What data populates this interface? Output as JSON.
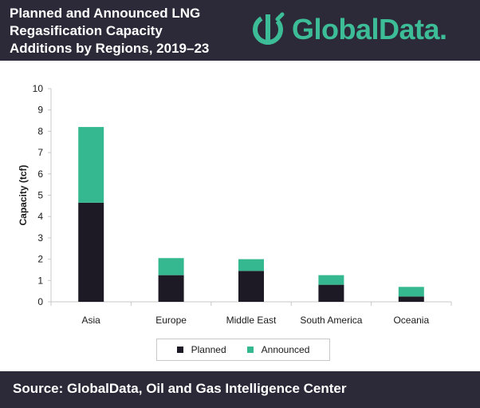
{
  "header": {
    "title_lines": [
      "Planned and Announced LNG",
      "Regasification Capacity",
      "Additions by Regions, 2019–23"
    ],
    "logo_text": "GlobalData."
  },
  "footer": {
    "source": "Source: GlobalData, Oil and Gas Intelligence Center"
  },
  "colors": {
    "planned": "#1d1a26",
    "announced": "#35b88f",
    "header_bg": "#2c2a38",
    "brand": "#3dbd97"
  },
  "chart_data": {
    "type": "bar",
    "stacked": true,
    "title": "Planned and Announced LNG Regasification Capacity Additions by Regions, 2019–23",
    "xlabel": "",
    "ylabel": "Capacity (tcf)",
    "ylim": [
      0,
      10
    ],
    "yticks": [
      0,
      1,
      2,
      3,
      4,
      5,
      6,
      7,
      8,
      9,
      10
    ],
    "categories": [
      "Asia",
      "Europe",
      "Middle East",
      "South America",
      "Oceania"
    ],
    "series": [
      {
        "name": "Planned",
        "values": [
          4.65,
          1.25,
          1.45,
          0.8,
          0.25
        ]
      },
      {
        "name": "Announced",
        "values": [
          3.55,
          0.8,
          0.55,
          0.45,
          0.45
        ]
      }
    ],
    "legend_position": "bottom"
  }
}
